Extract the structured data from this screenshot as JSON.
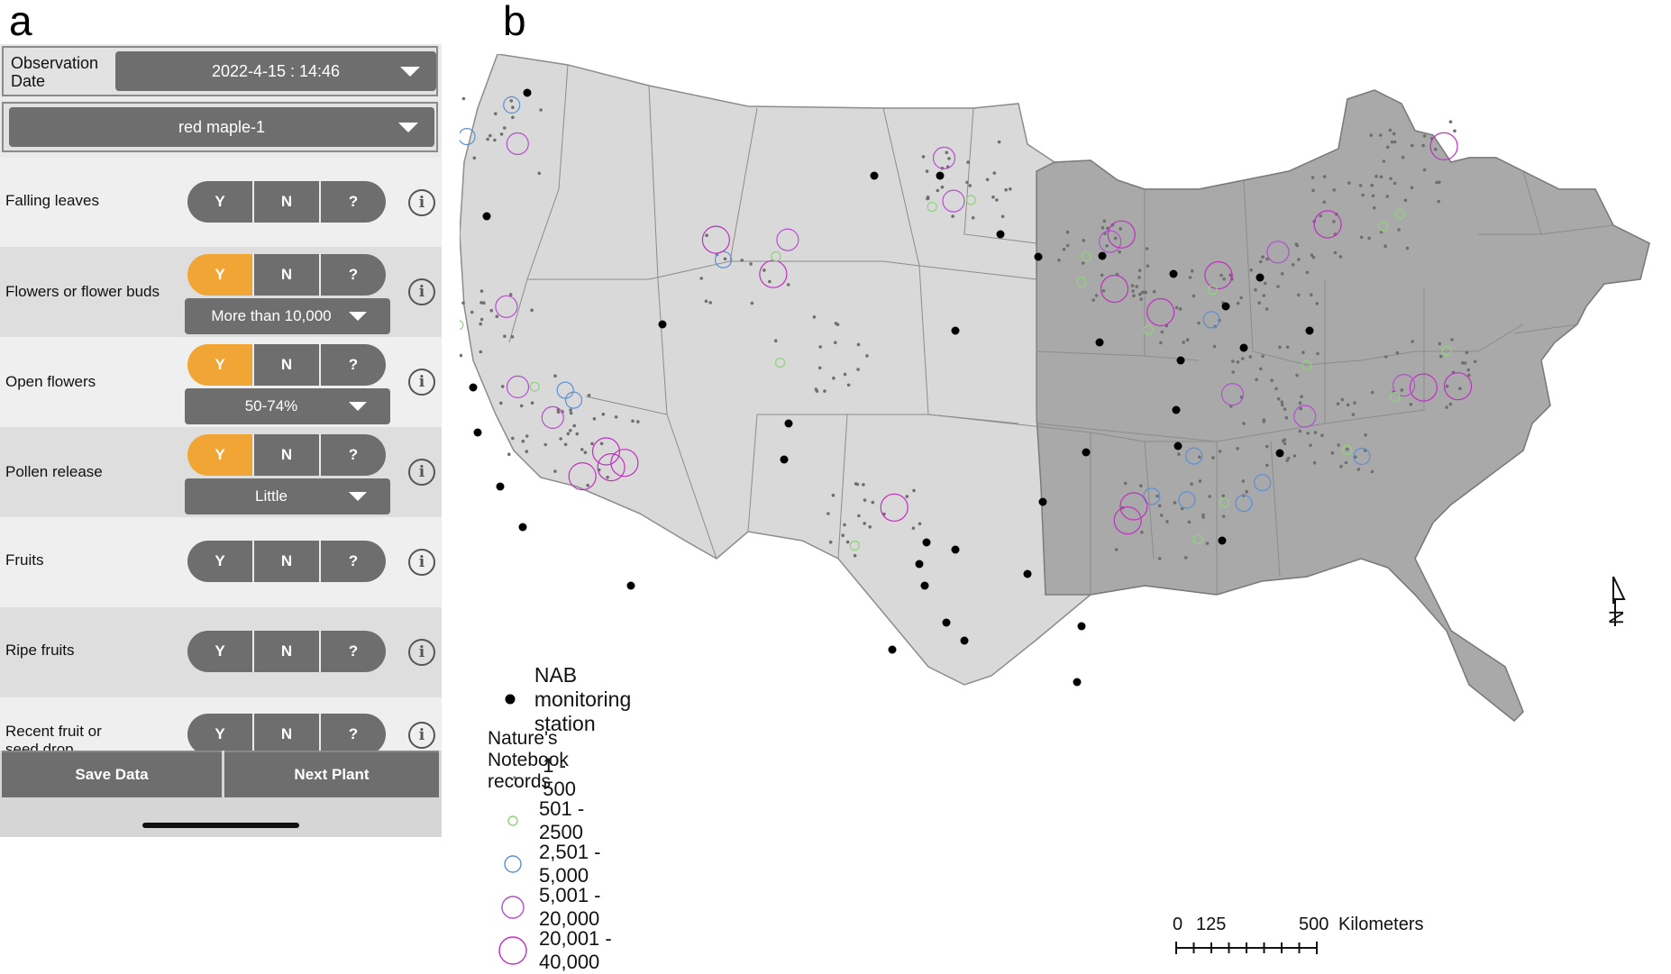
{
  "panels": {
    "a": "a",
    "b": "b"
  },
  "app": {
    "date_label": "Observation Date",
    "date_value": "2022-4-15 : 14:46",
    "plant_value": "red maple-1",
    "yes": "Y",
    "no": "N",
    "unknown": "?",
    "phenophases": [
      {
        "label": "Falling leaves",
        "answer": "none",
        "detail": ""
      },
      {
        "label": "Flowers or flower buds",
        "answer": "Y",
        "detail": "More than 10,000"
      },
      {
        "label": "Open flowers",
        "answer": "Y",
        "detail": "50-74%"
      },
      {
        "label": "Pollen release",
        "answer": "Y",
        "detail": "Little"
      },
      {
        "label": "Fruits",
        "answer": "none",
        "detail": ""
      },
      {
        "label": "Ripe fruits",
        "answer": "none",
        "detail": ""
      },
      {
        "label": "Recent fruit or seed drop",
        "answer": "none",
        "detail": ""
      }
    ],
    "save_label": "Save Data",
    "next_label": "Next Plant",
    "accent_color": "#f0a535",
    "button_color": "#6e6e6e",
    "info_icon": "info-icon"
  },
  "map": {
    "legend": {
      "station_label": "NAB monitoring station",
      "records_title": "Nature's Notebook records",
      "classes": [
        "1 - 500",
        "501 - 2500",
        "2,501 - 5,000",
        "5,001 - 20,000",
        "20,001 - 40,000"
      ],
      "class_colors": [
        "#777777",
        "#8fd47a",
        "#5b8fd6",
        "#b44fd0",
        "#c02fc0"
      ]
    },
    "scale_bar": {
      "zero": "0",
      "mid": "125",
      "end": "500",
      "unit": "Kilometers"
    },
    "north_label": "N",
    "shaded_region_color": "#a9a9a9",
    "base_region_color": "#d9d9d9"
  }
}
